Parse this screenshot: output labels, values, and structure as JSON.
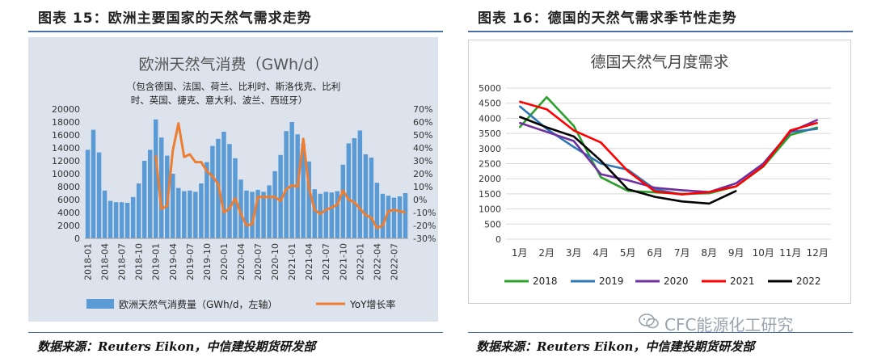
{
  "header": {
    "left_title": "图表 15：欧洲主要国家的天然气需求走势",
    "right_title": "图表 16：德国的天然气需求季节性走势"
  },
  "footer": {
    "left_source": "数据来源：Reuters Eikon，中信建投期货研发部",
    "right_source": "数据来源：Reuters Eikon，中信建投期货研发部",
    "watermark": "CFC能源化工研究"
  },
  "colors": {
    "bar": "#5b9bd5",
    "yoy": "#ed7d31",
    "s2018": "#2ca02c",
    "s2019": "#2e75b6",
    "s2020": "#7030a0",
    "s2021": "#ff0000",
    "s2022": "#000000",
    "rule": "#4a6fa5"
  },
  "chart_data": [
    {
      "type": "bar",
      "title": "欧洲天然气消费（GWh/d）",
      "subtitle_lines": [
        "（包含德国、法国、荷兰、比利时、斯洛伐克、比利",
        "时、英国、捷克、意大利、波兰、西班牙）"
      ],
      "y_left_ticks": [
        "20000",
        "18000",
        "16000",
        "14000",
        "12000",
        "10000",
        "8000",
        "6000",
        "4000",
        "2000",
        "0"
      ],
      "y_right_ticks": [
        "70%",
        "60%",
        "50%",
        "40%",
        "30%",
        "20%",
        "10%",
        "0%",
        "-10%",
        "-20%",
        "-30%"
      ],
      "ylim": [
        0,
        20000
      ],
      "y2lim": [
        -30,
        70
      ],
      "x_ticks": [
        "2018-01",
        "2018-04",
        "2018-07",
        "2018-10",
        "2019-01",
        "2019-04",
        "2019-07",
        "2019-10",
        "2020-01",
        "2020-04",
        "2020-07",
        "2020-10",
        "2021-01",
        "2021-04",
        "2021-07",
        "2021-10",
        "2022-01",
        "2022-04",
        "2022-07"
      ],
      "months": [
        "2018-01",
        "2018-02",
        "2018-03",
        "2018-04",
        "2018-05",
        "2018-06",
        "2018-07",
        "2018-08",
        "2018-09",
        "2018-10",
        "2018-11",
        "2018-12",
        "2019-01",
        "2019-02",
        "2019-03",
        "2019-04",
        "2019-05",
        "2019-06",
        "2019-07",
        "2019-08",
        "2019-09",
        "2019-10",
        "2019-11",
        "2019-12",
        "2020-01",
        "2020-02",
        "2020-03",
        "2020-04",
        "2020-05",
        "2020-06",
        "2020-07",
        "2020-08",
        "2020-09",
        "2020-10",
        "2020-11",
        "2020-12",
        "2021-01",
        "2021-02",
        "2021-03",
        "2021-04",
        "2021-05",
        "2021-06",
        "2021-07",
        "2021-08",
        "2021-09",
        "2021-10",
        "2021-11",
        "2021-12",
        "2022-01",
        "2022-02",
        "2022-03",
        "2022-04",
        "2022-05",
        "2022-06",
        "2022-07",
        "2022-08",
        "2022-09"
      ],
      "series": [
        {
          "name": "欧洲天然气消费量（GWh/d，左轴）",
          "kind": "bar",
          "values": [
            13700,
            16800,
            13300,
            7400,
            5800,
            5600,
            5600,
            5500,
            6400,
            8500,
            12000,
            13700,
            18400,
            15600,
            12800,
            10000,
            7800,
            7300,
            7400,
            7200,
            8500,
            11800,
            14300,
            15400,
            16500,
            14600,
            12400,
            9100,
            7400,
            7200,
            7500,
            7200,
            8200,
            10400,
            12900,
            16600,
            18000,
            16100,
            14600,
            11900,
            7600,
            6900,
            7200,
            7100,
            7300,
            11400,
            14700,
            15500,
            16700,
            13000,
            12500,
            8600,
            6900,
            6600,
            6300,
            6500,
            7000
          ]
        },
        {
          "name": "YoY增长率",
          "kind": "line",
          "values": [
            null,
            null,
            null,
            null,
            null,
            null,
            null,
            null,
            null,
            null,
            null,
            null,
            34,
            -7,
            -5,
            38,
            59,
            33,
            35,
            29,
            29,
            22,
            18,
            12,
            -10,
            -7,
            1,
            -11,
            -20,
            -19,
            2,
            2,
            2,
            2,
            -1,
            8,
            11,
            10,
            47,
            9,
            -8,
            -11,
            -8,
            -6,
            -4,
            7,
            0,
            -2,
            -7,
            -12,
            -14,
            -22,
            -20,
            -9,
            -8,
            -9,
            -10
          ]
        }
      ]
    },
    {
      "type": "line",
      "title": "德国天然气月度需求",
      "categories": [
        "1月",
        "2月",
        "3月",
        "4月",
        "5月",
        "6月",
        "7月",
        "8月",
        "9月",
        "10月",
        "11月",
        "12月"
      ],
      "y_ticks": [
        "5000",
        "4500",
        "4000",
        "3500",
        "3000",
        "2500",
        "2000",
        "1500",
        "1000",
        "500",
        "0"
      ],
      "ylim": [
        0,
        5000
      ],
      "series": [
        {
          "name": "2018",
          "values": [
            3700,
            4700,
            3750,
            2050,
            1600,
            1550,
            1500,
            1520,
            1750,
            2400,
            3450,
            3700
          ]
        },
        {
          "name": "2019",
          "values": [
            4400,
            3650,
            3050,
            2500,
            2300,
            1650,
            1480,
            1550,
            1850,
            2500,
            3550,
            3650
          ]
        },
        {
          "name": "2020",
          "values": [
            3850,
            3550,
            3250,
            2150,
            1950,
            1700,
            1620,
            1560,
            1850,
            2500,
            3550,
            3950
          ]
        },
        {
          "name": "2021",
          "values": [
            4550,
            4300,
            3600,
            3200,
            2250,
            1580,
            1480,
            1560,
            1750,
            2420,
            3600,
            3850
          ]
        },
        {
          "name": "2022",
          "values": [
            4050,
            3700,
            3400,
            2600,
            1650,
            1400,
            1250,
            1180,
            1600,
            null,
            null,
            null
          ]
        }
      ]
    }
  ]
}
